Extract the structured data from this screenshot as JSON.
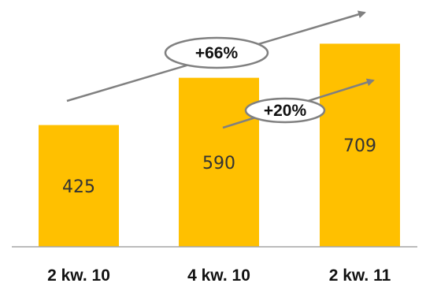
{
  "chart_data": {
    "type": "bar",
    "categories": [
      "2 kw. 10",
      "4 kw. 10",
      "2 kw. 11"
    ],
    "values": [
      425,
      590,
      709
    ],
    "value_labels": [
      "425",
      "590",
      "709"
    ],
    "ylim": [
      0,
      1000
    ],
    "grid": false,
    "legend": "none",
    "bar_color": "#FFC000",
    "annotations": [
      {
        "text": "+66%",
        "from_category": "2 kw. 10",
        "to_category": "2 kw. 11"
      },
      {
        "text": "+20%",
        "from_category": "4 kw. 10",
        "to_category": "2 kw. 11"
      }
    ],
    "arrow_color": "#808080",
    "baseline_color": "#A6A6A6"
  }
}
